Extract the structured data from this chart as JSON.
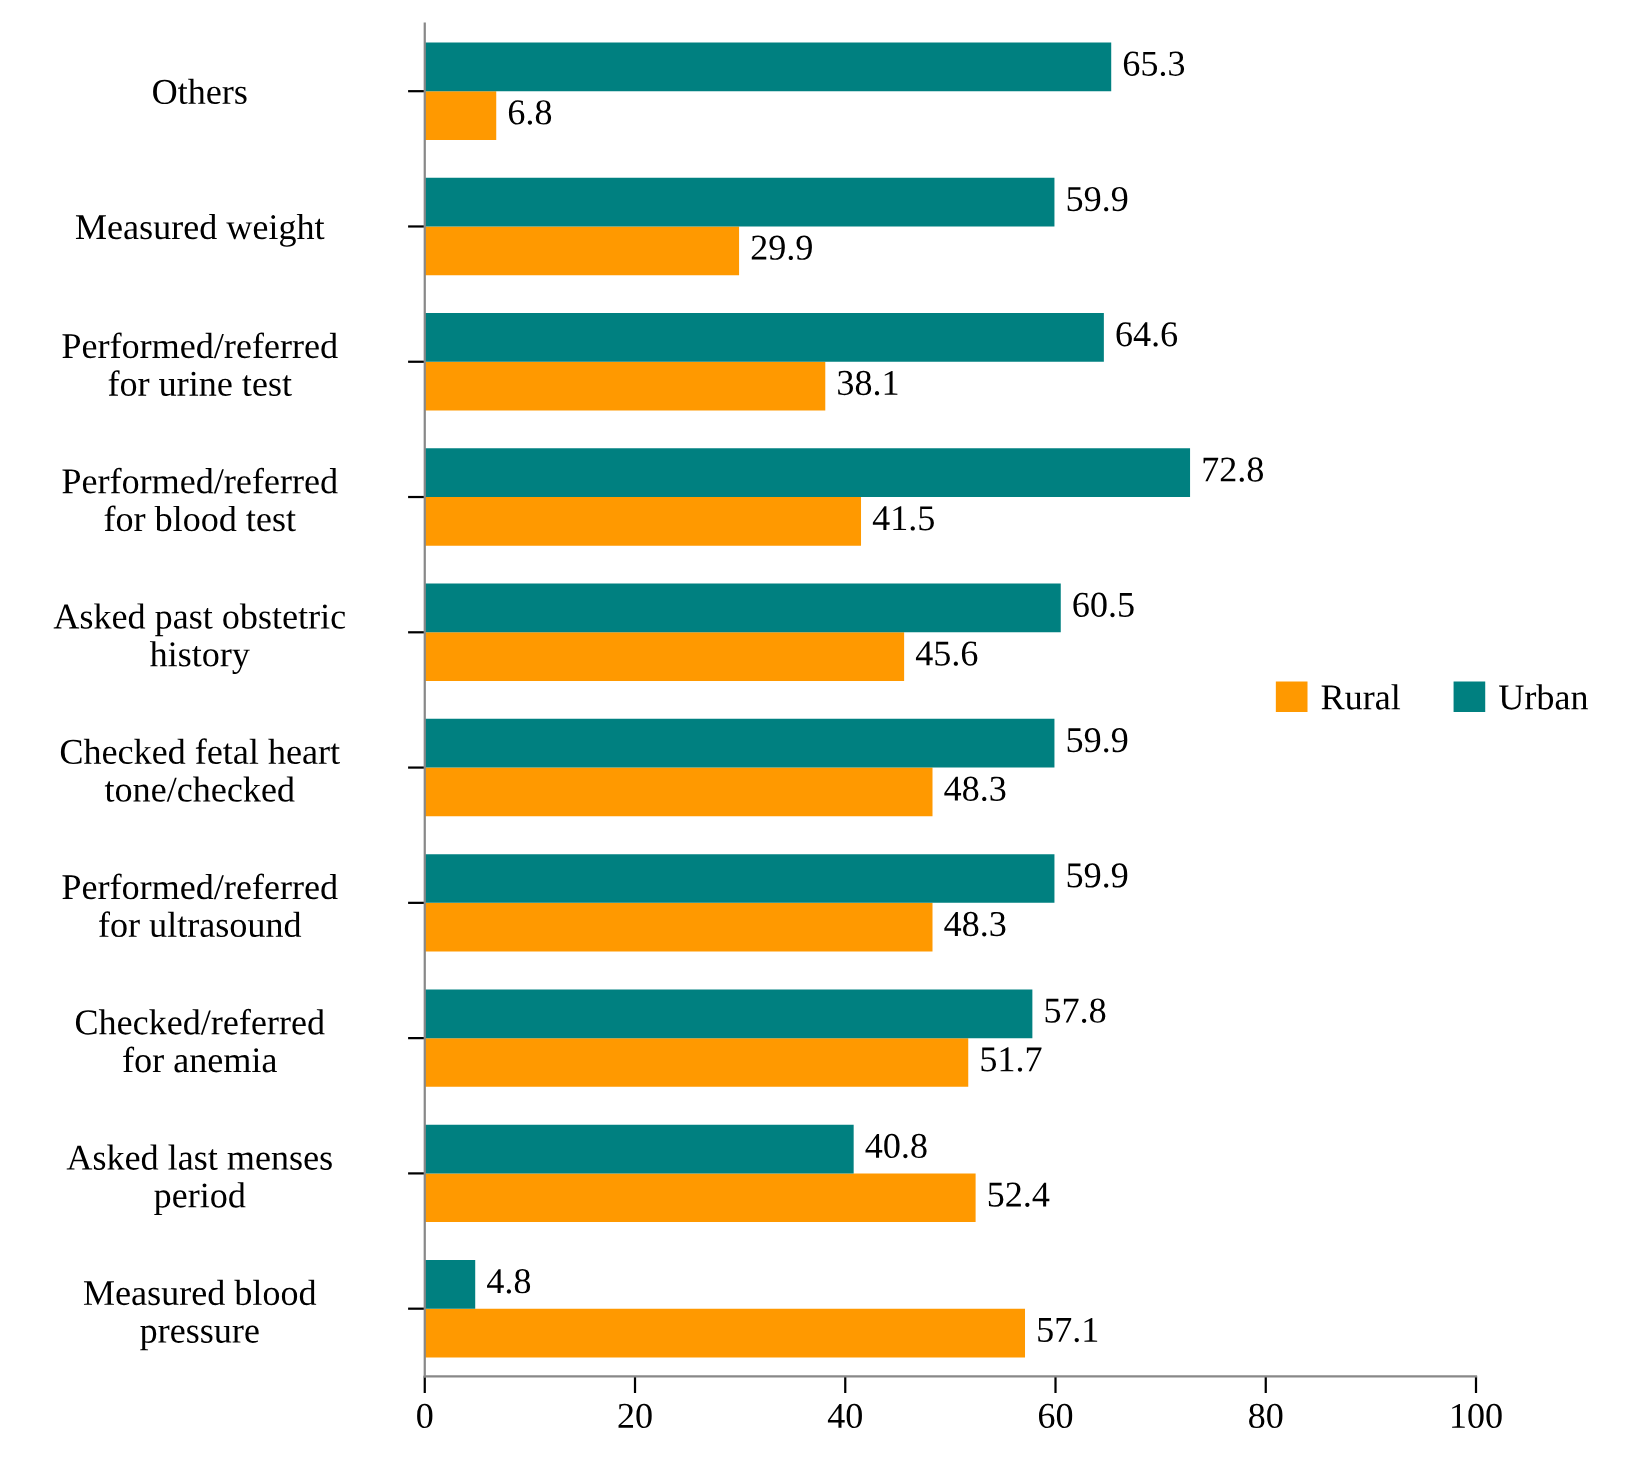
{
  "chart_data": {
    "type": "bar",
    "orientation": "horizontal",
    "categories": [
      "Others",
      "Measured weight",
      "Performed/referred\nfor urine test",
      "Performed/referred\nfor blood test",
      "Asked past obstetric\nhistory",
      "Checked fetal heart\ntone/checked",
      "Performed/referred\nfor ultrasound",
      "Checked/referred\nfor anemia",
      "Asked last menses\nperiod",
      "Measured blood\npressure"
    ],
    "series": [
      {
        "name": "Rural",
        "color": "#ff9900",
        "values": [
          6.8,
          29.9,
          38.1,
          41.5,
          45.6,
          48.3,
          48.3,
          51.7,
          52.4,
          57.1
        ]
      },
      {
        "name": "Urban",
        "color": "#008080",
        "values": [
          65.3,
          59.9,
          64.6,
          72.8,
          60.5,
          59.9,
          59.9,
          57.8,
          40.8,
          4.8
        ]
      }
    ],
    "xlim": [
      0,
      100
    ],
    "xticks": [
      0,
      20,
      40,
      60,
      80,
      100
    ],
    "data_labels": true,
    "legend": "right",
    "grid": false
  }
}
